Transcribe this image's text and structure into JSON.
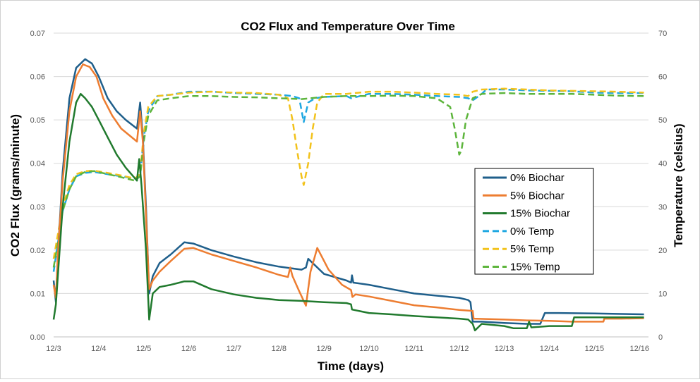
{
  "chart_data": {
    "type": "line",
    "title": "CO2 Flux and Temperature Over Time",
    "xlabel": "Time (days)",
    "ylabel": "CO2 Flux (grams/minute)",
    "y2label": "Temperature (celsius)",
    "x_ticks": [
      "12/3",
      "12/4",
      "12/5",
      "12/6",
      "12/7",
      "12/8",
      "12/9",
      "12/10",
      "12/11",
      "12/12",
      "12/13",
      "12/14",
      "12/15",
      "12/16"
    ],
    "xlim_days": [
      0,
      13.2
    ],
    "ylim": [
      0,
      0.07
    ],
    "y_ticks": [
      "0.00",
      "0.01",
      "0.02",
      "0.03",
      "0.04",
      "0.05",
      "0.06",
      "0.07"
    ],
    "y_tick_values": [
      0,
      0.01,
      0.02,
      0.03,
      0.04,
      0.05,
      0.06,
      0.07
    ],
    "y2lim": [
      0,
      70
    ],
    "y2_ticks": [
      "0",
      "10",
      "20",
      "30",
      "40",
      "50",
      "60",
      "70"
    ],
    "y2_tick_values": [
      0,
      10,
      20,
      30,
      40,
      50,
      60,
      70
    ],
    "grid": true,
    "legend_position": "right",
    "series": [
      {
        "name": "0% Biochar",
        "axis": "left",
        "color": "#1f5f8b",
        "dash": false,
        "points": [
          [
            0,
            0.013
          ],
          [
            0.05,
            0.008
          ],
          [
            0.1,
            0.02
          ],
          [
            0.2,
            0.038
          ],
          [
            0.35,
            0.055
          ],
          [
            0.5,
            0.062
          ],
          [
            0.7,
            0.064
          ],
          [
            0.85,
            0.063
          ],
          [
            1,
            0.06
          ],
          [
            1.2,
            0.055
          ],
          [
            1.4,
            0.052
          ],
          [
            1.6,
            0.05
          ],
          [
            1.85,
            0.048
          ],
          [
            1.92,
            0.054
          ],
          [
            1.98,
            0.046
          ],
          [
            2.05,
            0.03
          ],
          [
            2.12,
            0.01
          ],
          [
            2.2,
            0.014
          ],
          [
            2.35,
            0.017
          ],
          [
            2.6,
            0.019
          ],
          [
            2.9,
            0.0218
          ],
          [
            3.1,
            0.0215
          ],
          [
            3.5,
            0.02
          ],
          [
            4,
            0.0185
          ],
          [
            4.5,
            0.0172
          ],
          [
            5,
            0.0162
          ],
          [
            5.5,
            0.0155
          ],
          [
            5.6,
            0.016
          ],
          [
            5.65,
            0.018
          ],
          [
            5.75,
            0.017
          ],
          [
            6,
            0.0145
          ],
          [
            6.5,
            0.013
          ],
          [
            6.6,
            0.0125
          ],
          [
            6.62,
            0.0142
          ],
          [
            6.65,
            0.0125
          ],
          [
            7,
            0.012
          ],
          [
            7.5,
            0.011
          ],
          [
            8,
            0.01
          ],
          [
            8.5,
            0.0095
          ],
          [
            9,
            0.009
          ],
          [
            9.2,
            0.0085
          ],
          [
            9.25,
            0.008
          ],
          [
            9.3,
            0.0035
          ],
          [
            9.5,
            0.0035
          ],
          [
            10,
            0.0032
          ],
          [
            10.5,
            0.003
          ],
          [
            10.8,
            0.003
          ],
          [
            10.9,
            0.0055
          ],
          [
            11.2,
            0.0055
          ],
          [
            12,
            0.0054
          ],
          [
            12.5,
            0.0053
          ],
          [
            13.1,
            0.0052
          ]
        ]
      },
      {
        "name": "5% Biochar",
        "axis": "left",
        "color": "#ed7d31",
        "dash": false,
        "points": [
          [
            0,
            0.012
          ],
          [
            0.05,
            0.009
          ],
          [
            0.1,
            0.02
          ],
          [
            0.2,
            0.036
          ],
          [
            0.35,
            0.052
          ],
          [
            0.5,
            0.06
          ],
          [
            0.65,
            0.0628
          ],
          [
            0.8,
            0.0622
          ],
          [
            0.95,
            0.06
          ],
          [
            1.1,
            0.055
          ],
          [
            1.3,
            0.051
          ],
          [
            1.5,
            0.048
          ],
          [
            1.85,
            0.045
          ],
          [
            1.92,
            0.052
          ],
          [
            1.98,
            0.045
          ],
          [
            2.05,
            0.028
          ],
          [
            2.12,
            0.011
          ],
          [
            2.2,
            0.013
          ],
          [
            2.35,
            0.015
          ],
          [
            2.6,
            0.0175
          ],
          [
            2.9,
            0.0203
          ],
          [
            3.1,
            0.0205
          ],
          [
            3.5,
            0.019
          ],
          [
            4,
            0.0175
          ],
          [
            4.5,
            0.016
          ],
          [
            5,
            0.0143
          ],
          [
            5.2,
            0.0138
          ],
          [
            5.25,
            0.016
          ],
          [
            5.3,
            0.014
          ],
          [
            5.45,
            0.0105
          ],
          [
            5.6,
            0.0072
          ],
          [
            5.7,
            0.015
          ],
          [
            5.85,
            0.0205
          ],
          [
            5.95,
            0.0185
          ],
          [
            6.1,
            0.0155
          ],
          [
            6.4,
            0.012
          ],
          [
            6.6,
            0.0108
          ],
          [
            6.63,
            0.0092
          ],
          [
            6.7,
            0.0098
          ],
          [
            7,
            0.0093
          ],
          [
            7.5,
            0.0083
          ],
          [
            8,
            0.0073
          ],
          [
            8.5,
            0.0068
          ],
          [
            9,
            0.0062
          ],
          [
            9.3,
            0.006
          ],
          [
            9.32,
            0.0042
          ],
          [
            10,
            0.004
          ],
          [
            10.5,
            0.0038
          ],
          [
            11,
            0.0037
          ],
          [
            11.5,
            0.0035
          ],
          [
            12,
            0.0035
          ],
          [
            12.2,
            0.0035
          ],
          [
            12.22,
            0.0042
          ],
          [
            12.6,
            0.0042
          ],
          [
            13.1,
            0.0043
          ]
        ]
      },
      {
        "name": "15% Biochar",
        "axis": "left",
        "color": "#217a2e",
        "dash": false,
        "points": [
          [
            0,
            0.004
          ],
          [
            0.05,
            0.0075
          ],
          [
            0.1,
            0.015
          ],
          [
            0.2,
            0.03
          ],
          [
            0.35,
            0.045
          ],
          [
            0.5,
            0.054
          ],
          [
            0.6,
            0.056
          ],
          [
            0.7,
            0.055
          ],
          [
            0.85,
            0.053
          ],
          [
            1,
            0.05
          ],
          [
            1.2,
            0.046
          ],
          [
            1.4,
            0.042
          ],
          [
            1.6,
            0.039
          ],
          [
            1.85,
            0.036
          ],
          [
            1.9,
            0.041
          ],
          [
            1.95,
            0.035
          ],
          [
            2.05,
            0.02
          ],
          [
            2.12,
            0.004
          ],
          [
            2.2,
            0.01
          ],
          [
            2.35,
            0.0115
          ],
          [
            2.6,
            0.012
          ],
          [
            2.9,
            0.0128
          ],
          [
            3.1,
            0.0128
          ],
          [
            3.5,
            0.011
          ],
          [
            4,
            0.0098
          ],
          [
            4.5,
            0.009
          ],
          [
            5,
            0.0085
          ],
          [
            5.5,
            0.0083
          ],
          [
            6,
            0.008
          ],
          [
            6.5,
            0.0078
          ],
          [
            6.6,
            0.0075
          ],
          [
            6.62,
            0.0063
          ],
          [
            7,
            0.0055
          ],
          [
            7.5,
            0.0052
          ],
          [
            8,
            0.0048
          ],
          [
            8.5,
            0.0045
          ],
          [
            9,
            0.0042
          ],
          [
            9.2,
            0.004
          ],
          [
            9.3,
            0.003
          ],
          [
            9.35,
            0.0015
          ],
          [
            9.5,
            0.003
          ],
          [
            10,
            0.0025
          ],
          [
            10.2,
            0.002
          ],
          [
            10.5,
            0.002
          ],
          [
            10.55,
            0.0035
          ],
          [
            10.6,
            0.0022
          ],
          [
            11,
            0.0025
          ],
          [
            11.5,
            0.0025
          ],
          [
            11.55,
            0.0045
          ],
          [
            12,
            0.0045
          ],
          [
            13.1,
            0.0045
          ]
        ]
      },
      {
        "name": "0% Temp",
        "axis": "right",
        "color": "#1ea7e1",
        "dash": true,
        "points": [
          [
            0,
            15
          ],
          [
            0.1,
            22
          ],
          [
            0.2,
            29
          ],
          [
            0.35,
            34
          ],
          [
            0.5,
            37
          ],
          [
            0.7,
            37.8
          ],
          [
            0.9,
            38
          ],
          [
            1.2,
            37.5
          ],
          [
            1.5,
            37
          ],
          [
            1.8,
            36.5
          ],
          [
            1.92,
            37
          ],
          [
            2,
            46
          ],
          [
            2.1,
            52
          ],
          [
            2.3,
            55.5
          ],
          [
            2.6,
            55.8
          ],
          [
            3,
            56.5
          ],
          [
            3.5,
            56.5
          ],
          [
            4,
            56.2
          ],
          [
            4.5,
            56
          ],
          [
            5,
            55.8
          ],
          [
            5.3,
            55.5
          ],
          [
            5.45,
            55
          ],
          [
            5.55,
            49.5
          ],
          [
            5.65,
            54
          ],
          [
            5.8,
            55
          ],
          [
            6,
            55.3
          ],
          [
            6.5,
            55.5
          ],
          [
            6.6,
            55
          ],
          [
            7,
            56
          ],
          [
            7.5,
            56
          ],
          [
            8,
            55.8
          ],
          [
            8.5,
            55.5
          ],
          [
            9,
            55.3
          ],
          [
            9.2,
            55
          ],
          [
            9.3,
            54.5
          ],
          [
            9.5,
            56
          ],
          [
            9.6,
            57
          ],
          [
            10,
            57
          ],
          [
            10.5,
            56.8
          ],
          [
            11,
            56.7
          ],
          [
            11.5,
            56.6
          ],
          [
            12,
            56.3
          ],
          [
            12.5,
            56.2
          ],
          [
            13.1,
            56.2
          ]
        ]
      },
      {
        "name": "5% Temp",
        "axis": "right",
        "color": "#f2c21b",
        "dash": true,
        "points": [
          [
            0,
            18
          ],
          [
            0.1,
            24
          ],
          [
            0.2,
            30
          ],
          [
            0.35,
            35
          ],
          [
            0.5,
            37.5
          ],
          [
            0.7,
            38.2
          ],
          [
            0.9,
            38.3
          ],
          [
            1.2,
            37.8
          ],
          [
            1.5,
            37.2
          ],
          [
            1.8,
            36.5
          ],
          [
            1.92,
            37.5
          ],
          [
            2,
            47
          ],
          [
            2.1,
            53
          ],
          [
            2.3,
            55.5
          ],
          [
            2.6,
            55.8
          ],
          [
            3,
            56.3
          ],
          [
            3.5,
            56.5
          ],
          [
            4,
            56.3
          ],
          [
            4.5,
            56.2
          ],
          [
            5,
            55.8
          ],
          [
            5.2,
            55
          ],
          [
            5.3,
            50
          ],
          [
            5.4,
            43
          ],
          [
            5.5,
            37
          ],
          [
            5.55,
            35
          ],
          [
            5.65,
            40
          ],
          [
            5.75,
            48
          ],
          [
            5.85,
            54
          ],
          [
            6,
            56
          ],
          [
            6.5,
            56
          ],
          [
            7,
            56.5
          ],
          [
            7.5,
            56.5
          ],
          [
            8,
            56.3
          ],
          [
            8.5,
            56
          ],
          [
            9,
            55.8
          ],
          [
            9.2,
            55.5
          ],
          [
            9.3,
            56.5
          ],
          [
            9.5,
            57
          ],
          [
            10,
            57.2
          ],
          [
            10.5,
            57
          ],
          [
            11,
            56.8
          ],
          [
            11.5,
            56.7
          ],
          [
            12,
            56.6
          ],
          [
            12.5,
            56.5
          ],
          [
            13.1,
            56.3
          ]
        ]
      },
      {
        "name": "15% Temp",
        "axis": "right",
        "color": "#5db53c",
        "dash": true,
        "points": [
          [
            0,
            16
          ],
          [
            0.1,
            22
          ],
          [
            0.2,
            29
          ],
          [
            0.35,
            34
          ],
          [
            0.5,
            37
          ],
          [
            0.7,
            38
          ],
          [
            0.9,
            38.2
          ],
          [
            1.2,
            37.5
          ],
          [
            1.5,
            36.8
          ],
          [
            1.8,
            36
          ],
          [
            1.92,
            37
          ],
          [
            2,
            45
          ],
          [
            2.1,
            51
          ],
          [
            2.3,
            54.5
          ],
          [
            2.6,
            55
          ],
          [
            3,
            55.5
          ],
          [
            3.5,
            55.5
          ],
          [
            4,
            55.3
          ],
          [
            4.5,
            55.2
          ],
          [
            5,
            55
          ],
          [
            5.5,
            54.8
          ],
          [
            5.7,
            55
          ],
          [
            6,
            55.3
          ],
          [
            6.5,
            55.5
          ],
          [
            7,
            55.5
          ],
          [
            7.5,
            55.6
          ],
          [
            8,
            55.5
          ],
          [
            8.5,
            55
          ],
          [
            8.8,
            53
          ],
          [
            8.9,
            48
          ],
          [
            9,
            42
          ],
          [
            9.05,
            43
          ],
          [
            9.15,
            50
          ],
          [
            9.3,
            55
          ],
          [
            9.5,
            56
          ],
          [
            10,
            56.2
          ],
          [
            10.5,
            56
          ],
          [
            11,
            56
          ],
          [
            11.5,
            56
          ],
          [
            12,
            55.8
          ],
          [
            12.5,
            55.6
          ],
          [
            13.1,
            55.5
          ]
        ]
      }
    ]
  }
}
